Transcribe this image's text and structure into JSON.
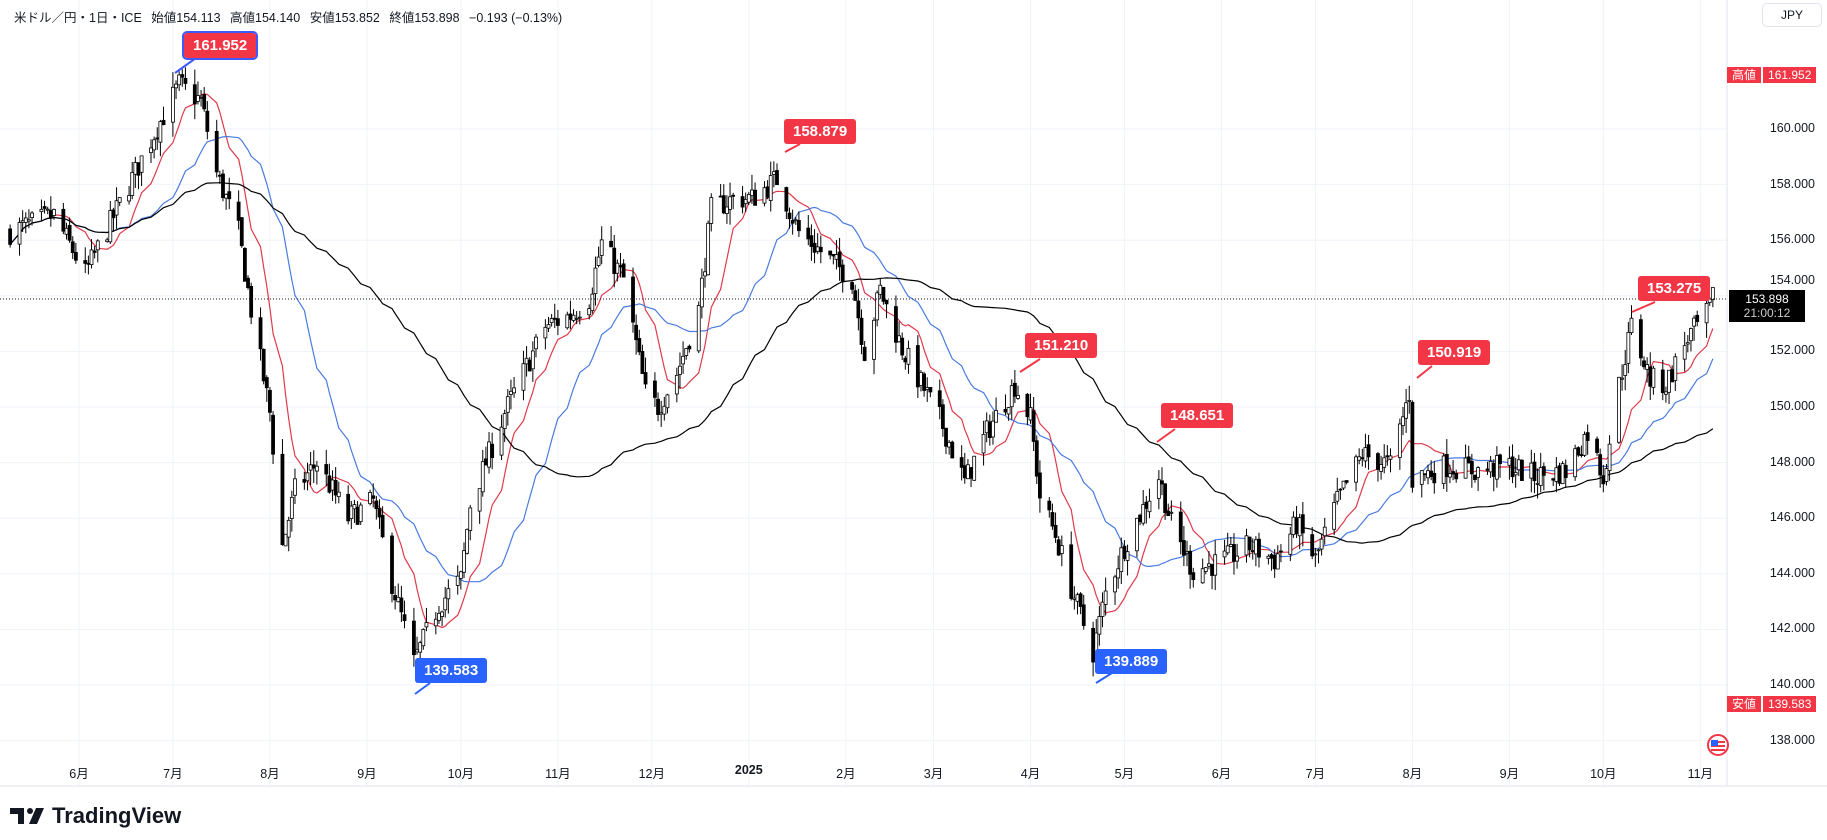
{
  "legend": {
    "symbol": "米ドル／円・1日・ICE",
    "open": "始値154.113",
    "high": "高値154.140",
    "low": "安値153.852",
    "close": "終値153.898",
    "change": "−0.193 (−0.13%)"
  },
  "currency_button": "JPY",
  "high_tag": {
    "label": "高値",
    "value": "161.952"
  },
  "low_tag": {
    "label": "安値",
    "value": "139.583"
  },
  "last_price": {
    "value": "153.898",
    "countdown": "21:00:12"
  },
  "price_axis": [
    "160.000",
    "158.000",
    "156.000",
    "154.000",
    "152.000",
    "150.000",
    "148.000",
    "146.000",
    "144.000",
    "142.000",
    "140.000",
    "138.000"
  ],
  "time_axis": [
    "6月",
    "7月",
    "8月",
    "9月",
    "10月",
    "11月",
    "12月",
    "2025",
    "2月",
    "3月",
    "4月",
    "5月",
    "6月",
    "7月",
    "8月",
    "9月",
    "10月",
    "11月"
  ],
  "callouts": [
    {
      "value": "161.952",
      "kind": "high"
    },
    {
      "value": "158.879",
      "kind": "high"
    },
    {
      "value": "151.210",
      "kind": "high"
    },
    {
      "value": "148.651",
      "kind": "high"
    },
    {
      "value": "150.919",
      "kind": "high"
    },
    {
      "value": "153.275",
      "kind": "high"
    },
    {
      "value": "139.583",
      "kind": "low"
    },
    {
      "value": "139.889",
      "kind": "low"
    }
  ],
  "branding": "TradingView",
  "colors": {
    "up": "#ffffff",
    "down": "#000000",
    "ma_fast": "#e03a4a",
    "ma_mid": "#4a7be0",
    "ma_slow": "#000000",
    "callout_high": "#f23645",
    "callout_low": "#2962ff"
  },
  "chart_data": {
    "type": "candlestick",
    "symbol": "USD/JPY",
    "interval": "1D",
    "ylim": [
      137.2,
      163.5
    ],
    "xlim": [
      "2024-05-10",
      "2025-11-05"
    ],
    "grid": true,
    "moving_averages": [
      "fast",
      "mid",
      "slow"
    ],
    "last_price": 153.898,
    "period_high": 161.952,
    "period_low": 139.583,
    "close_path": [
      [
        "2024-05-10",
        156.3
      ],
      [
        "2024-05-24",
        156.9
      ],
      [
        "2024-06-03",
        154.8
      ],
      [
        "2024-06-14",
        157.3
      ],
      [
        "2024-06-24",
        159.6
      ],
      [
        "2024-07-03",
        161.6
      ],
      [
        "2024-07-10",
        161.0
      ],
      [
        "2024-07-15",
        158.4
      ],
      [
        "2024-07-22",
        156.3
      ],
      [
        "2024-07-26",
        153.5
      ],
      [
        "2024-08-01",
        149.8
      ],
      [
        "2024-08-05",
        145.0
      ],
      [
        "2024-08-09",
        147.0
      ],
      [
        "2024-08-16",
        148.0
      ],
      [
        "2024-08-26",
        146.0
      ],
      [
        "2024-09-03",
        146.6
      ],
      [
        "2024-09-09",
        143.7
      ],
      [
        "2024-09-16",
        140.8
      ],
      [
        "2024-09-24",
        142.9
      ],
      [
        "2024-10-01",
        143.8
      ],
      [
        "2024-10-04",
        146.5
      ],
      [
        "2024-10-15",
        149.8
      ],
      [
        "2024-10-28",
        152.9
      ],
      [
        "2024-11-05",
        153.3
      ],
      [
        "2024-11-11",
        153.9
      ],
      [
        "2024-11-15",
        155.9
      ],
      [
        "2024-11-22",
        154.6
      ],
      [
        "2024-11-29",
        150.5
      ],
      [
        "2024-12-03",
        150.0
      ],
      [
        "2024-12-09",
        151.2
      ],
      [
        "2024-12-16",
        153.5
      ],
      [
        "2024-12-20",
        157.1
      ],
      [
        "2024-12-27",
        157.5
      ],
      [
        "2025-01-02",
        157.5
      ],
      [
        "2025-01-10",
        158.2
      ],
      [
        "2025-01-17",
        156.3
      ],
      [
        "2025-01-24",
        155.6
      ],
      [
        "2025-02-03",
        154.6
      ],
      [
        "2025-02-07",
        152.0
      ],
      [
        "2025-02-12",
        154.2
      ],
      [
        "2025-02-19",
        152.1
      ],
      [
        "2025-03-03",
        149.6
      ],
      [
        "2025-03-11",
        147.3
      ],
      [
        "2025-03-18",
        149.1
      ],
      [
        "2025-03-27",
        150.8
      ],
      [
        "2025-04-01",
        149.6
      ],
      [
        "2025-04-04",
        146.8
      ],
      [
        "2025-04-09",
        145.4
      ],
      [
        "2025-04-14",
        143.5
      ],
      [
        "2025-04-21",
        141.2
      ],
      [
        "2025-04-25",
        143.3
      ],
      [
        "2025-05-01",
        145.0
      ],
      [
        "2025-05-12",
        147.5
      ],
      [
        "2025-05-16",
        145.8
      ],
      [
        "2025-05-23",
        144.1
      ],
      [
        "2025-06-02",
        144.5
      ],
      [
        "2025-06-10",
        145.0
      ],
      [
        "2025-06-18",
        144.5
      ],
      [
        "2025-06-25",
        145.8
      ],
      [
        "2025-07-01",
        144.5
      ],
      [
        "2025-07-08",
        146.6
      ],
      [
        "2025-07-16",
        148.3
      ],
      [
        "2025-07-25",
        147.9
      ],
      [
        "2025-07-31",
        150.5
      ],
      [
        "2025-08-01",
        147.4
      ],
      [
        "2025-08-12",
        147.9
      ],
      [
        "2025-08-22",
        147.7
      ],
      [
        "2025-09-01",
        147.9
      ],
      [
        "2025-09-09",
        147.5
      ],
      [
        "2025-09-19",
        147.7
      ],
      [
        "2025-09-26",
        149.1
      ],
      [
        "2025-10-01",
        147.5
      ],
      [
        "2025-10-06",
        150.8
      ],
      [
        "2025-10-10",
        152.9
      ],
      [
        "2025-10-16",
        151.0
      ],
      [
        "2025-10-21",
        150.8
      ],
      [
        "2025-10-28",
        152.5
      ],
      [
        "2025-11-03",
        153.3
      ],
      [
        "2025-11-05",
        153.9
      ]
    ]
  }
}
